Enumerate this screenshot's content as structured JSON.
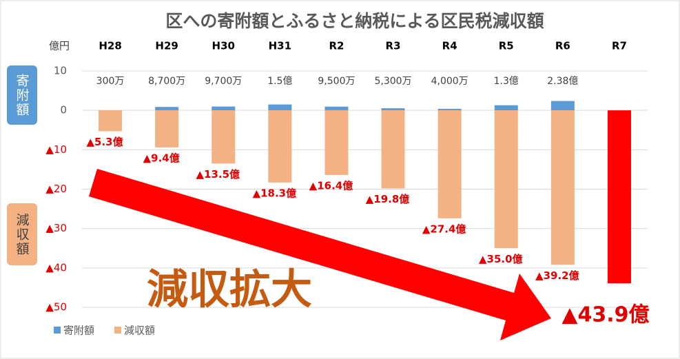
{
  "chart_data": {
    "type": "bar",
    "title": "区への寄附額とふるさと納税による区民税減収額",
    "unit_label": "億円",
    "annotation": "減収拡大",
    "categories": [
      "H28",
      "H29",
      "H30",
      "H31",
      "R2",
      "R3",
      "R4",
      "R5",
      "R6",
      "R7"
    ],
    "series": [
      {
        "name": "寄附額",
        "color": "#5b9bd5",
        "values": [
          0.03,
          0.87,
          0.97,
          1.5,
          0.95,
          0.53,
          0.4,
          1.3,
          2.38,
          null
        ],
        "value_labels": [
          "300万",
          "8,700万",
          "9,700万",
          "1.5億",
          "9,500万",
          "5,300万",
          "4,000万",
          "1.3億",
          "2.38億",
          null
        ]
      },
      {
        "name": "減収額",
        "color": "#f4b183",
        "colors": [
          "#f4b183",
          "#f4b183",
          "#f4b183",
          "#f4b183",
          "#f4b183",
          "#f4b183",
          "#f4b183",
          "#f4b183",
          "#f4b183",
          "#ff0000"
        ],
        "values": [
          -5.3,
          -9.4,
          -13.5,
          -18.3,
          -16.4,
          -19.8,
          -27.4,
          -35.0,
          -39.2,
          -43.9
        ],
        "value_labels": [
          "▲5.3億",
          "▲9.4億",
          "▲13.5億",
          "▲18.3億",
          "▲16.4億",
          "▲19.8億",
          "▲27.4億",
          "▲35.0億",
          "▲39.2億",
          "▲43.9億"
        ]
      }
    ],
    "ylim": [
      -50,
      10
    ],
    "yticks": [
      10,
      0,
      {
        "value": -10,
        "label": "▲10"
      },
      {
        "value": -20,
        "label": "▲20"
      },
      {
        "value": -30,
        "label": "▲30"
      },
      {
        "value": -40,
        "label": "▲40"
      },
      {
        "value": -50,
        "label": "▲50"
      }
    ],
    "grid": true
  }
}
